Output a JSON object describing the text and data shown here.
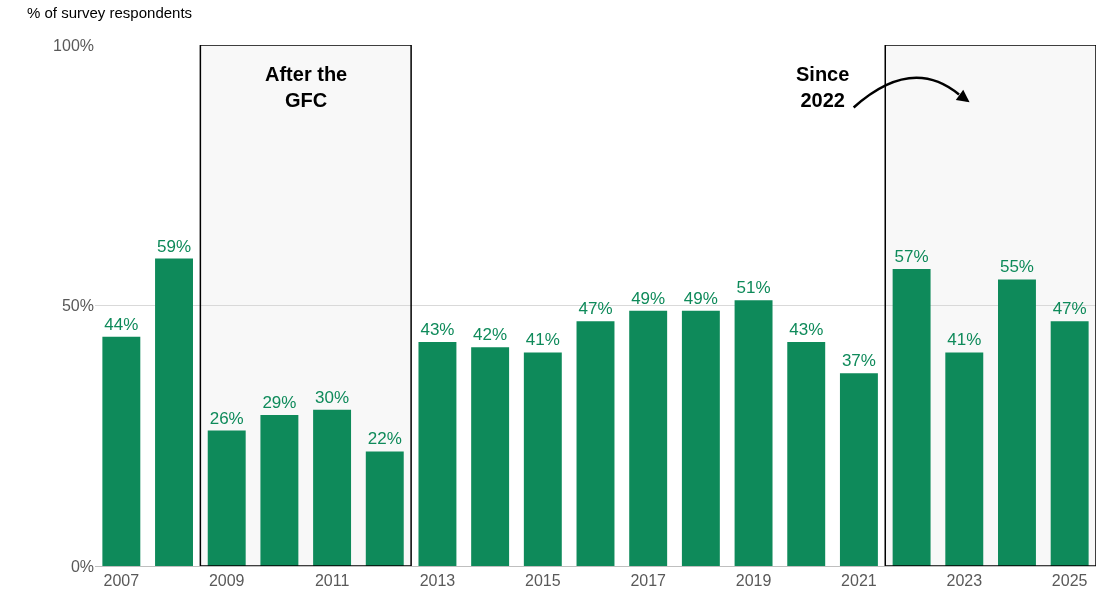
{
  "chart_data": {
    "type": "bar",
    "ylabel": "% of survey respondents",
    "x": [
      2007,
      2008,
      2009,
      2010,
      2011,
      2012,
      2013,
      2014,
      2015,
      2016,
      2017,
      2018,
      2019,
      2020,
      2021,
      2022,
      2023,
      2024,
      2025
    ],
    "values": [
      44,
      59,
      26,
      29,
      30,
      22,
      43,
      42,
      41,
      47,
      49,
      49,
      51,
      43,
      37,
      57,
      41,
      55,
      47
    ],
    "value_labels": [
      "44%",
      "59%",
      "26%",
      "29%",
      "30%",
      "22%",
      "43%",
      "42%",
      "41%",
      "47%",
      "49%",
      "49%",
      "51%",
      "43%",
      "37%",
      "57%",
      "41%",
      "55%",
      "47%"
    ],
    "color": "#0e8a5a",
    "xlim": [
      2006.5,
      2025.5
    ],
    "xticks": [
      2007,
      2009,
      2011,
      2013,
      2015,
      2017,
      2019,
      2021,
      2023,
      2025
    ],
    "ylim": [
      0,
      100
    ],
    "yticks": [
      {
        "value": 0,
        "label": "0%"
      },
      {
        "value": 50,
        "label": "50%"
      },
      {
        "value": 100,
        "label": "100%"
      }
    ],
    "grid": "y",
    "bands": [
      {
        "axis": "x",
        "from": 2008.5,
        "to": 2012.5,
        "label": "After the\nGFC",
        "color": "#000000"
      },
      {
        "axis": "x",
        "from": 2021.5,
        "to": 2025.5,
        "label": "Since\n2022",
        "color": "#000000"
      }
    ]
  }
}
